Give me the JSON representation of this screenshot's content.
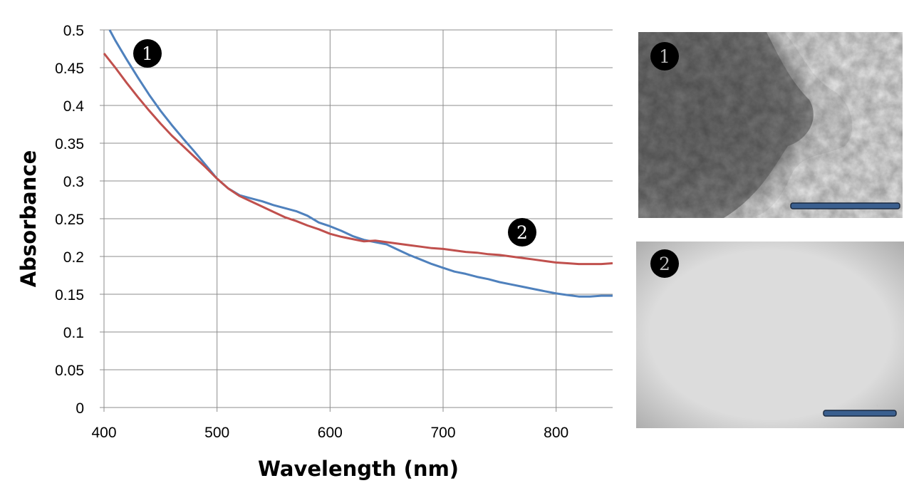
{
  "chart_data": {
    "type": "line",
    "xlabel": "Wavelength (nm)",
    "ylabel": "Absorbance",
    "xlim": [
      400,
      850
    ],
    "ylim": [
      0,
      0.5
    ],
    "x_ticks": [
      400,
      500,
      600,
      700,
      800
    ],
    "y_ticks": [
      "0",
      "0.05",
      "0.1",
      "0.15",
      "0.2",
      "0.25",
      "0.3",
      "0.35",
      "0.4",
      "0.45",
      "0.5"
    ],
    "grid": true,
    "series": [
      {
        "marker": "1",
        "color": "#4f81bd",
        "x": [
          405,
          410,
          420,
          430,
          440,
          450,
          460,
          470,
          480,
          490,
          500,
          510,
          520,
          530,
          540,
          550,
          560,
          570,
          580,
          590,
          600,
          610,
          620,
          630,
          640,
          650,
          660,
          670,
          680,
          690,
          700,
          710,
          720,
          730,
          740,
          750,
          760,
          770,
          780,
          790,
          800,
          810,
          820,
          830,
          840,
          850
        ],
        "y": [
          0.5,
          0.486,
          0.461,
          0.437,
          0.414,
          0.393,
          0.374,
          0.356,
          0.339,
          0.321,
          0.303,
          0.29,
          0.281,
          0.277,
          0.273,
          0.268,
          0.264,
          0.26,
          0.254,
          0.245,
          0.24,
          0.234,
          0.227,
          0.222,
          0.219,
          0.216,
          0.209,
          0.202,
          0.196,
          0.19,
          0.185,
          0.18,
          0.177,
          0.173,
          0.17,
          0.166,
          0.163,
          0.16,
          0.157,
          0.154,
          0.151,
          0.149,
          0.147,
          0.147,
          0.148,
          0.148
        ]
      },
      {
        "marker": "2",
        "color": "#c0504d",
        "x": [
          400,
          410,
          420,
          430,
          440,
          450,
          460,
          470,
          480,
          490,
          500,
          510,
          520,
          530,
          540,
          550,
          560,
          570,
          580,
          590,
          600,
          610,
          620,
          630,
          640,
          650,
          660,
          670,
          680,
          690,
          700,
          710,
          720,
          730,
          740,
          750,
          760,
          770,
          780,
          790,
          800,
          810,
          820,
          830,
          840,
          850
        ],
        "y": [
          0.469,
          0.45,
          0.43,
          0.411,
          0.393,
          0.376,
          0.36,
          0.346,
          0.332,
          0.318,
          0.303,
          0.29,
          0.28,
          0.273,
          0.266,
          0.259,
          0.252,
          0.247,
          0.241,
          0.236,
          0.23,
          0.226,
          0.223,
          0.22,
          0.221,
          0.219,
          0.217,
          0.215,
          0.213,
          0.211,
          0.21,
          0.208,
          0.206,
          0.205,
          0.203,
          0.202,
          0.2,
          0.198,
          0.196,
          0.194,
          0.192,
          0.191,
          0.19,
          0.19,
          0.19,
          0.191
        ]
      }
    ]
  },
  "markers": [
    {
      "label": "1"
    },
    {
      "label": "2"
    }
  ],
  "images": [
    {
      "label": "1"
    },
    {
      "label": "2"
    }
  ]
}
